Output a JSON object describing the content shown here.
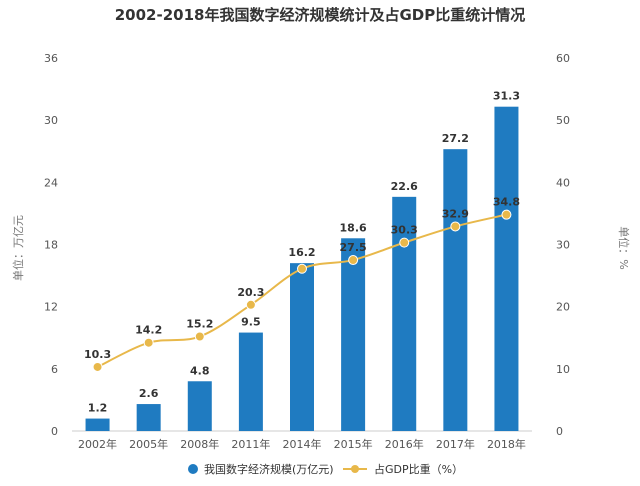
{
  "chart_data": {
    "type": "bar",
    "title": "2002-2018年我国数字经济规模统计及占GDP比重统计情况",
    "categories": [
      "2002年",
      "2005年",
      "2008年",
      "2011年",
      "2014年",
      "2015年",
      "2016年",
      "2017年",
      "2018年"
    ],
    "series": [
      {
        "name": "我国数字经济规模(万亿元)",
        "type": "bar",
        "axis": "left",
        "color": "#1f7bc1",
        "values": [
          1.2,
          2.6,
          4.8,
          9.5,
          16.2,
          18.6,
          22.6,
          27.2,
          31.3
        ],
        "labels": [
          "1.2",
          "2.6",
          "4.8",
          "9.5",
          "16.2",
          "18.6",
          "22.6",
          "27.2",
          "31.3"
        ]
      },
      {
        "name": "占GDP比重（%）",
        "type": "line",
        "axis": "right",
        "color": "#e8b84a",
        "values": [
          10.3,
          14.2,
          15.2,
          20.3,
          26.1,
          27.5,
          30.3,
          32.9,
          34.8
        ],
        "labels": [
          "10.3",
          "14.2",
          "15.2",
          "20.3",
          "",
          "27.5",
          "30.3",
          "32.9",
          "34.8"
        ]
      }
    ],
    "ylabel": "单位：万亿元",
    "ylabel_right": "单位：%",
    "ylim": [
      0,
      36
    ],
    "ylim_right": [
      0,
      60
    ],
    "yticks": [
      "0",
      "6",
      "12",
      "18",
      "24",
      "30",
      "36"
    ],
    "yticks_right": [
      "0",
      "10",
      "20",
      "30",
      "40",
      "50",
      "60"
    ],
    "legend_position": "bottom-center",
    "grid": false
  }
}
